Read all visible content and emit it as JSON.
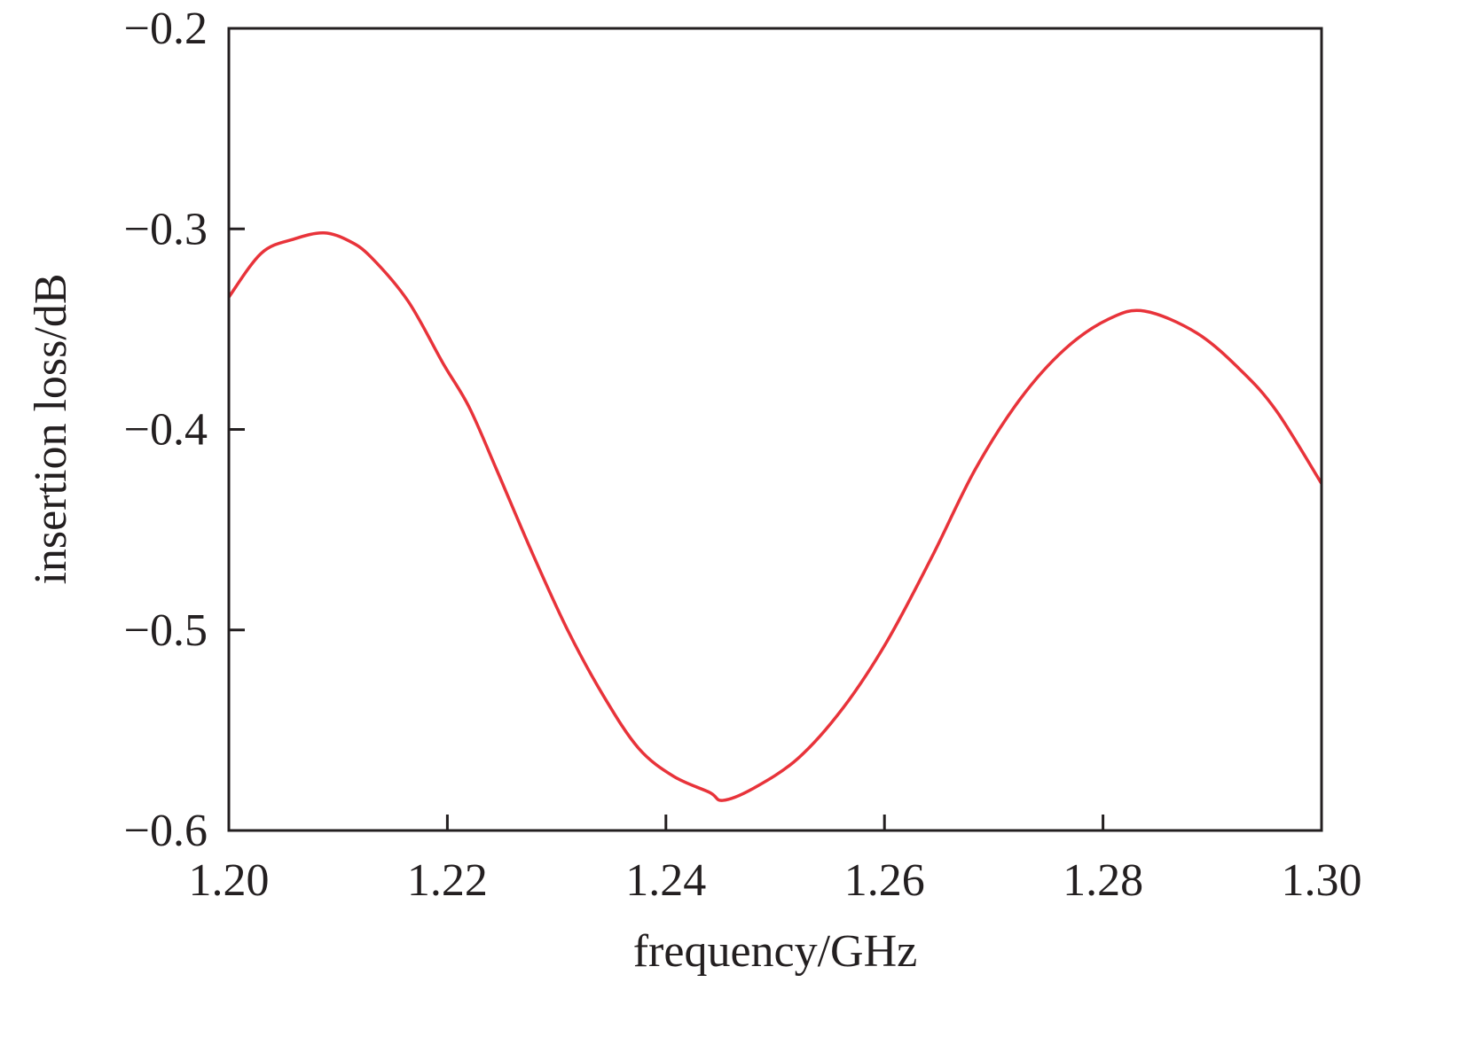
{
  "chart_data": {
    "type": "line",
    "title": "",
    "xlabel": "frequency/GHz",
    "ylabel": "insertion loss/dB",
    "xlim": [
      1.2,
      1.3
    ],
    "ylim": [
      -0.6,
      -0.2
    ],
    "xticks": [
      1.2,
      1.22,
      1.24,
      1.26,
      1.28,
      1.3
    ],
    "xtick_labels": [
      "1.20",
      "1.22",
      "1.24",
      "1.26",
      "1.28",
      "1.30"
    ],
    "yticks": [
      -0.6,
      -0.5,
      -0.4,
      -0.3,
      -0.2
    ],
    "ytick_labels": [
      "−0.6",
      "−0.5",
      "−0.4",
      "−0.3",
      "−0.2"
    ],
    "grid": false,
    "series": [
      {
        "color": "#e8333a",
        "x": [
          1.2,
          1.203,
          1.206,
          1.2087,
          1.211,
          1.213,
          1.2164,
          1.2196,
          1.222,
          1.2245,
          1.2278,
          1.231,
          1.2343,
          1.2375,
          1.2407,
          1.244,
          1.2452,
          1.248,
          1.2521,
          1.2562,
          1.2602,
          1.2643,
          1.2683,
          1.2724,
          1.2765,
          1.2805,
          1.2838,
          1.2886,
          1.2927,
          1.2959,
          1.3
        ],
        "y": [
          -0.334,
          -0.312,
          -0.305,
          -0.302,
          -0.306,
          -0.314,
          -0.336,
          -0.367,
          -0.389,
          -0.42,
          -0.462,
          -0.5,
          -0.533,
          -0.559,
          -0.573,
          -0.581,
          -0.585,
          -0.579,
          -0.564,
          -0.539,
          -0.506,
          -0.464,
          -0.42,
          -0.385,
          -0.36,
          -0.345,
          -0.341,
          -0.352,
          -0.371,
          -0.391,
          -0.427
        ]
      }
    ]
  }
}
